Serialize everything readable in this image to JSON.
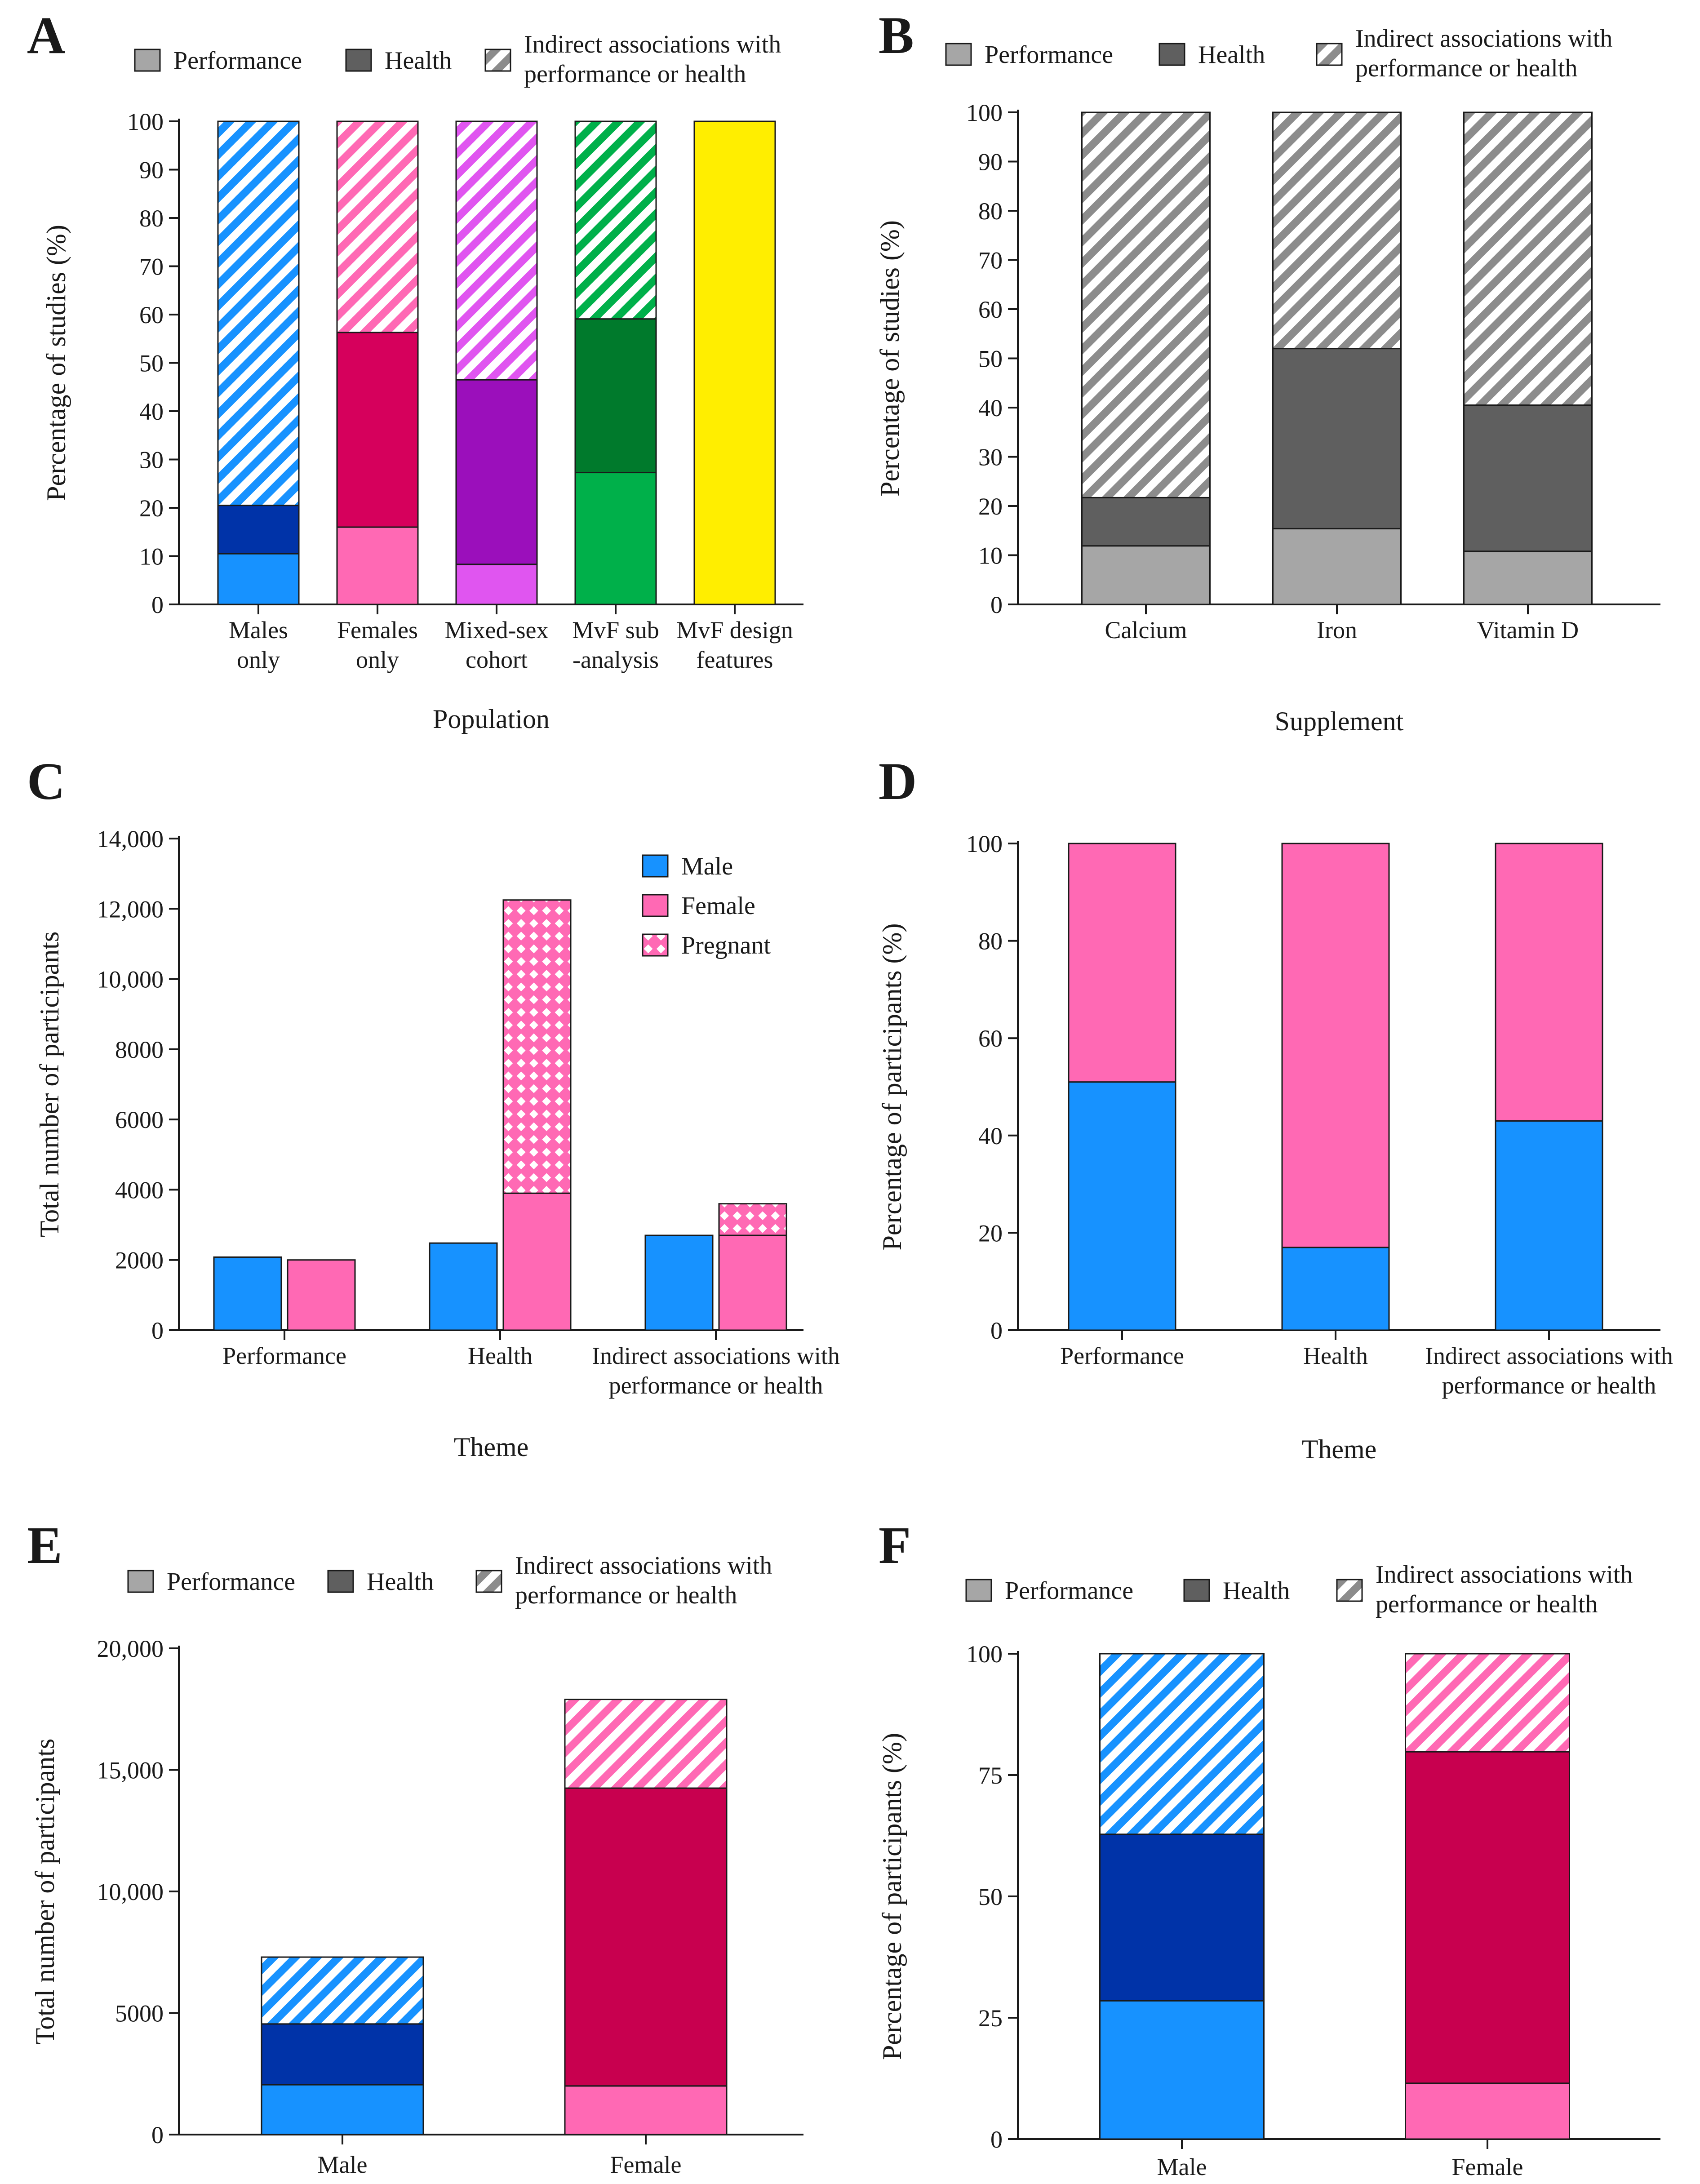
{
  "colors": {
    "perf_gray": "#a6a6a6",
    "health_gray": "#5f5f5f",
    "stripe_gray": "#8c8c8c",
    "male_light": "#1792ff",
    "male_dark": "#0033a8",
    "female_light": "#ff69b4",
    "female_dark": "#c8004f",
    "females_only_dark": "#d6005c",
    "mixed_light": "#e055f0",
    "mixed_dark": "#9b0fbb",
    "mvf_light": "#00b04a",
    "mvf_dark": "#007a2c",
    "design_yellow": "#ffee00"
  },
  "chart_data": [
    {
      "id": "A",
      "panel_label": "A",
      "type": "bar",
      "stacked": true,
      "title": "",
      "xlabel": "Population",
      "ylabel": "Percentage of studies (%)",
      "ylim": [
        0,
        100
      ],
      "yticks": [
        0,
        10,
        20,
        30,
        40,
        50,
        60,
        70,
        80,
        90,
        100
      ],
      "ytick_labels": [
        "0",
        "10",
        "20",
        "30",
        "40",
        "50",
        "60",
        "70",
        "80",
        "90",
        "100"
      ],
      "categories": [
        [
          "Males",
          "only"
        ],
        [
          "Females",
          "only"
        ],
        [
          "Mixed-sex",
          "cohort"
        ],
        [
          "MvF sub",
          "-analysis"
        ],
        [
          "MvF design",
          "features"
        ]
      ],
      "legend": [
        {
          "label": [
            "Performance"
          ],
          "pattern": "solid",
          "color": "#a6a6a6"
        },
        {
          "label": [
            "Health"
          ],
          "pattern": "solid",
          "color": "#5f5f5f"
        },
        {
          "label": [
            "Indirect associations with",
            "performance or health"
          ],
          "pattern": "stripe",
          "color": "#8c8c8c"
        }
      ],
      "series": [
        {
          "name": "Performance",
          "pattern": "solid",
          "values": [
            10.5,
            16,
            8.3,
            27.3,
            100
          ],
          "colors": [
            "#1792ff",
            "#ff69b4",
            "#e055f0",
            "#00b04a",
            "#ffee00"
          ]
        },
        {
          "name": "Health",
          "pattern": "solid",
          "values": [
            10,
            40.3,
            38.2,
            31.8,
            0
          ],
          "colors": [
            "#0033a8",
            "#d6005c",
            "#9b0fbb",
            "#007a2c",
            "#ffee00"
          ]
        },
        {
          "name": "Indirect associations with performance or health",
          "pattern": "stripe",
          "values": [
            79.5,
            43.7,
            53.5,
            40.9,
            0
          ],
          "colors": [
            "#1792ff",
            "#ff69b4",
            "#e055f0",
            "#00b04a",
            "#ffee00"
          ]
        }
      ]
    },
    {
      "id": "B",
      "panel_label": "B",
      "type": "bar",
      "stacked": true,
      "title": "",
      "xlabel": "Supplement",
      "ylabel": "Percentage of studies (%)",
      "ylim": [
        0,
        100
      ],
      "yticks": [
        0,
        10,
        20,
        30,
        40,
        50,
        60,
        70,
        80,
        90,
        100
      ],
      "ytick_labels": [
        "0",
        "10",
        "20",
        "30",
        "40",
        "50",
        "60",
        "70",
        "80",
        "90",
        "100"
      ],
      "categories": [
        [
          "Calcium"
        ],
        [
          "Iron"
        ],
        [
          "Vitamin D"
        ]
      ],
      "legend": [
        {
          "label": [
            "Performance"
          ],
          "pattern": "solid",
          "color": "#a6a6a6"
        },
        {
          "label": [
            "Health"
          ],
          "pattern": "solid",
          "color": "#5f5f5f"
        },
        {
          "label": [
            "Indirect associations with",
            "performance or health"
          ],
          "pattern": "stripe",
          "color": "#8c8c8c"
        }
      ],
      "series": [
        {
          "name": "Performance",
          "pattern": "solid",
          "values": [
            11.9,
            15.4,
            10.8
          ],
          "colors": [
            "#a6a6a6",
            "#a6a6a6",
            "#a6a6a6"
          ]
        },
        {
          "name": "Health",
          "pattern": "solid",
          "values": [
            9.8,
            36.6,
            29.7
          ],
          "colors": [
            "#5f5f5f",
            "#5f5f5f",
            "#5f5f5f"
          ]
        },
        {
          "name": "Indirect associations with performance or health",
          "pattern": "stripe",
          "values": [
            78.3,
            48,
            59.5
          ],
          "colors": [
            "#8c8c8c",
            "#8c8c8c",
            "#8c8c8c"
          ]
        }
      ]
    },
    {
      "id": "C",
      "panel_label": "C",
      "type": "bar",
      "stacked": false,
      "grouped": true,
      "title": "",
      "xlabel": "Theme",
      "ylabel": "Total number of participants",
      "ylim": [
        0,
        14000
      ],
      "yticks": [
        0,
        2000,
        4000,
        6000,
        8000,
        10000,
        12000,
        14000
      ],
      "ytick_labels": [
        "0",
        "2000",
        "4000",
        "6000",
        "8000",
        "10,000",
        "12,000",
        "14,000"
      ],
      "categories": [
        [
          "Performance"
        ],
        [
          "Health"
        ],
        [
          "Indirect associations with",
          "performance or health"
        ]
      ],
      "legend": [
        {
          "label": [
            "Male"
          ],
          "pattern": "solid",
          "color": "#1792ff"
        },
        {
          "label": [
            "Female"
          ],
          "pattern": "solid",
          "color": "#ff69b4"
        },
        {
          "label": [
            "Pregnant"
          ],
          "pattern": "check",
          "color": "#ff69b4"
        }
      ],
      "groups": [
        {
          "name": "Male",
          "stack": [
            {
              "name": "Male",
              "pattern": "solid",
              "color": "#1792ff",
              "values": [
                2080,
                2480,
                2700
              ]
            }
          ]
        },
        {
          "name": "Female",
          "stack": [
            {
              "name": "Female",
              "pattern": "solid",
              "color": "#ff69b4",
              "values": [
                2000,
                3900,
                2700
              ]
            },
            {
              "name": "Pregnant",
              "pattern": "check",
              "color": "#ff69b4",
              "values": [
                0,
                8350,
                900
              ]
            }
          ]
        }
      ]
    },
    {
      "id": "D",
      "panel_label": "D",
      "type": "bar",
      "stacked": true,
      "title": "",
      "xlabel": "Theme",
      "ylabel": "Percentage of participants (%)",
      "ylim": [
        0,
        100
      ],
      "yticks": [
        0,
        20,
        40,
        60,
        80,
        100
      ],
      "ytick_labels": [
        "0",
        "20",
        "40",
        "60",
        "80",
        "100"
      ],
      "categories": [
        [
          "Performance"
        ],
        [
          "Health"
        ],
        [
          "Indirect associations with",
          "performance or health"
        ]
      ],
      "legend": [],
      "series": [
        {
          "name": "Male",
          "pattern": "solid",
          "values": [
            51,
            17,
            43
          ],
          "colors": [
            "#1792ff",
            "#1792ff",
            "#1792ff"
          ]
        },
        {
          "name": "Female",
          "pattern": "solid",
          "values": [
            49,
            83,
            57
          ],
          "colors": [
            "#ff69b4",
            "#ff69b4",
            "#ff69b4"
          ]
        }
      ]
    },
    {
      "id": "E",
      "panel_label": "E",
      "type": "bar",
      "stacked": true,
      "title": "",
      "xlabel": "",
      "ylabel": "Total number of participants",
      "ylim": [
        0,
        20000
      ],
      "yticks": [
        0,
        5000,
        10000,
        15000,
        20000
      ],
      "ytick_labels": [
        "0",
        "5000",
        "10,000",
        "15,000",
        "20,000"
      ],
      "categories": [
        [
          "Male"
        ],
        [
          "Female"
        ]
      ],
      "legend": [
        {
          "label": [
            "Performance"
          ],
          "pattern": "solid",
          "color": "#a6a6a6"
        },
        {
          "label": [
            "Health"
          ],
          "pattern": "solid",
          "color": "#5f5f5f"
        },
        {
          "label": [
            "Indirect associations with",
            "performance or health"
          ],
          "pattern": "stripe",
          "color": "#8c8c8c"
        }
      ],
      "series": [
        {
          "name": "Performance",
          "pattern": "solid",
          "values": [
            2050,
            2000
          ],
          "colors": [
            "#1792ff",
            "#ff69b4"
          ]
        },
        {
          "name": "Health",
          "pattern": "solid",
          "values": [
            2500,
            12250
          ],
          "colors": [
            "#0033a8",
            "#c8004f"
          ]
        },
        {
          "name": "Indirect associations with performance or health",
          "pattern": "stripe",
          "values": [
            2750,
            3650
          ],
          "colors": [
            "#1792ff",
            "#ff69b4"
          ]
        }
      ]
    },
    {
      "id": "F",
      "panel_label": "F",
      "type": "bar",
      "stacked": true,
      "title": "",
      "xlabel": "",
      "ylabel": "Percentage of participants (%)",
      "ylim": [
        0,
        100
      ],
      "yticks": [
        0,
        25,
        50,
        75,
        100
      ],
      "ytick_labels": [
        "0",
        "25",
        "50",
        "75",
        "100"
      ],
      "categories": [
        [
          "Male"
        ],
        [
          "Female"
        ]
      ],
      "legend": [
        {
          "label": [
            "Performance"
          ],
          "pattern": "solid",
          "color": "#a6a6a6"
        },
        {
          "label": [
            "Health"
          ],
          "pattern": "solid",
          "color": "#5f5f5f"
        },
        {
          "label": [
            "Indirect associations with",
            "performance or health"
          ],
          "pattern": "stripe",
          "color": "#8c8c8c"
        }
      ],
      "series": [
        {
          "name": "Performance",
          "pattern": "solid",
          "values": [
            28.5,
            11.5
          ],
          "colors": [
            "#1792ff",
            "#ff69b4"
          ]
        },
        {
          "name": "Health",
          "pattern": "solid",
          "values": [
            34.3,
            68.3
          ],
          "colors": [
            "#0033a8",
            "#c8004f"
          ]
        },
        {
          "name": "Indirect associations with performance or health",
          "pattern": "stripe",
          "values": [
            37.2,
            20.2
          ],
          "colors": [
            "#1792ff",
            "#ff69b4"
          ]
        }
      ]
    }
  ]
}
